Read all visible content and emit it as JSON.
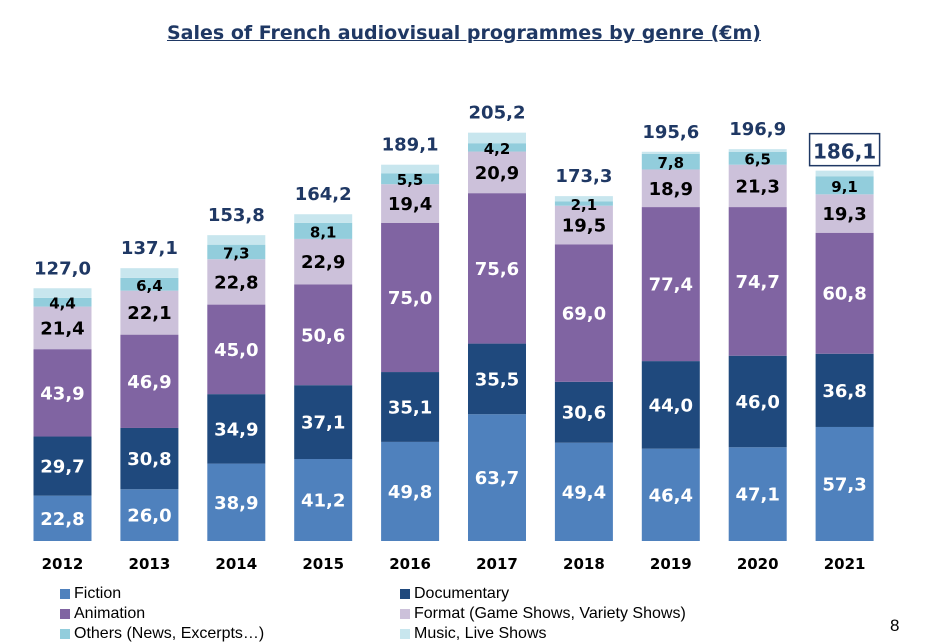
{
  "chart_data": {
    "type": "bar",
    "stacked": true,
    "title": "Sales of French audiovisual programmes by genre (€m)",
    "categories": [
      "2012",
      "2013",
      "2014",
      "2015",
      "2016",
      "2017",
      "2018",
      "2019",
      "2020",
      "2021"
    ],
    "totals": [
      "127,0",
      "137,1",
      "153,8",
      "164,2",
      "189,1",
      "205,2",
      "173,3",
      "195,6",
      "196,9",
      "186,1"
    ],
    "highlighted_total": "2021",
    "series": [
      {
        "name": "Fiction",
        "color": "#4f81bd",
        "label_color": "#ffffff",
        "values": [
          22.8,
          26.0,
          38.9,
          41.2,
          49.8,
          63.7,
          49.4,
          46.4,
          47.1,
          57.3
        ],
        "labels": [
          "22,8",
          "26,0",
          "38,9",
          "41,2",
          "49,8",
          "63,7",
          "49,4",
          "46,4",
          "47,1",
          "57,3"
        ]
      },
      {
        "name": "Documentary",
        "color": "#1f497d",
        "label_color": "#ffffff",
        "values": [
          29.7,
          30.8,
          34.9,
          37.1,
          35.1,
          35.5,
          30.6,
          44.0,
          46.0,
          36.8
        ],
        "labels": [
          "29,7",
          "30,8",
          "34,9",
          "37,1",
          "35,1",
          "35,5",
          "30,6",
          "44,0",
          "46,0",
          "36,8"
        ]
      },
      {
        "name": "Animation",
        "color": "#8064a2",
        "label_color": "#ffffff",
        "values": [
          43.9,
          46.9,
          45.0,
          50.6,
          75.0,
          75.6,
          69.0,
          77.4,
          74.7,
          60.8
        ],
        "labels": [
          "43,9",
          "46,9",
          "45,0",
          "50,6",
          "75,0",
          "75,6",
          "69,0",
          "77,4",
          "74,7",
          "60,8"
        ]
      },
      {
        "name": "Format (Game Shows, Variety Shows)",
        "color": "#ccc1da",
        "label_color": "#000000",
        "values": [
          21.4,
          22.1,
          22.8,
          22.9,
          19.4,
          20.9,
          19.5,
          18.9,
          21.3,
          19.3
        ],
        "labels": [
          "21,4",
          "22,1",
          "22,8",
          "22,9",
          "19,4",
          "20,9",
          "19,5",
          "18,9",
          "21,3",
          "19,3"
        ]
      },
      {
        "name": "Others (News, Excerpts…)",
        "color": "#92cddc",
        "label_color": "#000000",
        "values": [
          4.4,
          6.4,
          7.3,
          8.1,
          5.5,
          4.2,
          2.1,
          7.8,
          6.5,
          9.1
        ],
        "labels": [
          "4,4",
          "6,4",
          "7,3",
          "8,1",
          "5,5",
          "4,2",
          "2,1",
          "7,8",
          "6,5",
          "9,1"
        ]
      },
      {
        "name": "Music, Live Shows",
        "color": "#c8e6ee",
        "label_color": "#000000",
        "values": [
          4.8,
          4.9,
          4.8,
          4.3,
          4.3,
          5.3,
          2.7,
          1.1,
          1.3,
          2.8
        ],
        "labels": []
      }
    ],
    "ylim": [
      0,
      225
    ],
    "legend_position": "bottom",
    "grid": false
  },
  "page_number": "8"
}
